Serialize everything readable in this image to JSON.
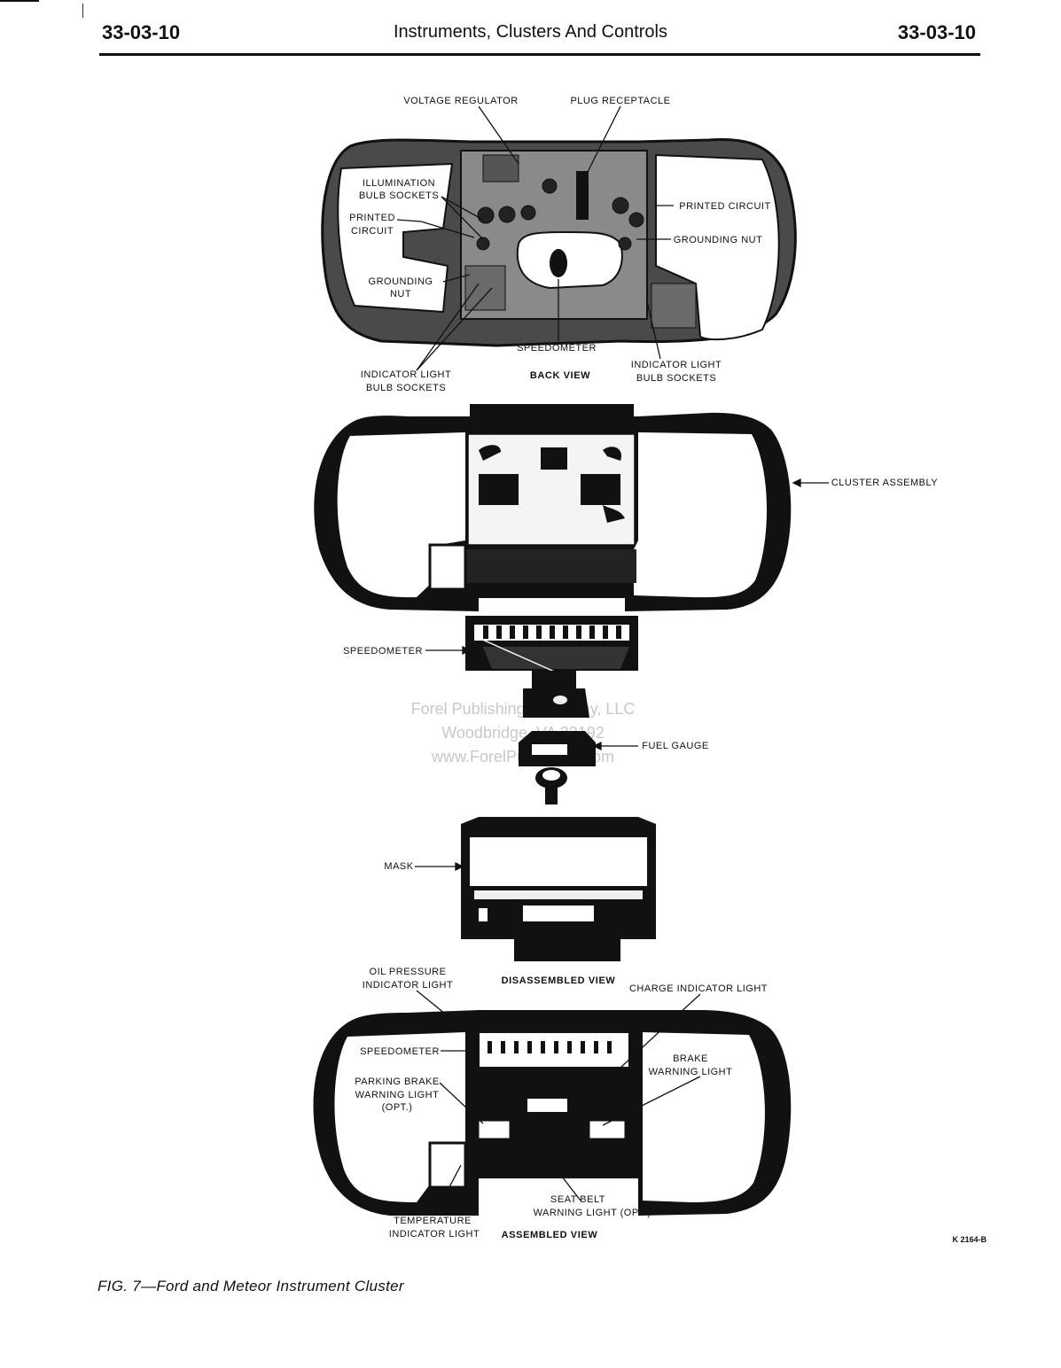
{
  "header": {
    "section_left": "33-03-10",
    "title": "Instruments, Clusters And Controls",
    "section_right": "33-03-10"
  },
  "labels": {
    "voltage_regulator": "VOLTAGE REGULATOR",
    "plug_receptacle": "PLUG RECEPTACLE",
    "illumination_1": "ILLUMINATION",
    "illumination_2": "BULB SOCKETS",
    "printed_circuit_left_1": "PRINTED",
    "printed_circuit_left_2": "CIRCUIT",
    "printed_circuit_right": "PRINTED CIRCUIT",
    "grounding_nut_right": "GROUNDING NUT",
    "grounding_nut_left_1": "GROUNDING",
    "grounding_nut_left_2": "NUT",
    "speedometer_back": "SPEEDOMETER",
    "indicator_left_1": "INDICATOR LIGHT",
    "indicator_left_2": "BULB SOCKETS",
    "back_view": "BACK VIEW",
    "indicator_right_1": "INDICATOR LIGHT",
    "indicator_right_2": "BULB SOCKETS",
    "cluster_assembly": "CLUSTER ASSEMBLY",
    "speedometer_disassembled": "SPEEDOMETER",
    "fuel_gauge": "FUEL GAUGE",
    "mask": "MASK",
    "oil_pressure_1": "OIL PRESSURE",
    "oil_pressure_2": "INDICATOR LIGHT",
    "disassembled_view": "DISASSEMBLED VIEW",
    "charge_indicator": "CHARGE INDICATOR LIGHT",
    "speedometer_assembled": "SPEEDOMETER",
    "brake_1": "BRAKE",
    "brake_2": "WARNING LIGHT",
    "parking_brake_1": "PARKING BRAKE",
    "parking_brake_2": "WARNING LIGHT",
    "parking_brake_3": "(OPT.)",
    "seat_belt_1": "SEAT BELT",
    "seat_belt_2": "WARNING LIGHT (OPT.)",
    "temperature_1": "TEMPERATURE",
    "temperature_2": "INDICATOR LIGHT",
    "assembled_view": "ASSEMBLED VIEW"
  },
  "watermark": {
    "line1": "Forel Publishing Company, LLC",
    "line2": "Woodbridge, VA 22192",
    "line3": "www.ForelPublishing.com"
  },
  "figure_code": "K 2164-B",
  "caption": "FIG. 7—Ford and Meteor Instrument Cluster"
}
